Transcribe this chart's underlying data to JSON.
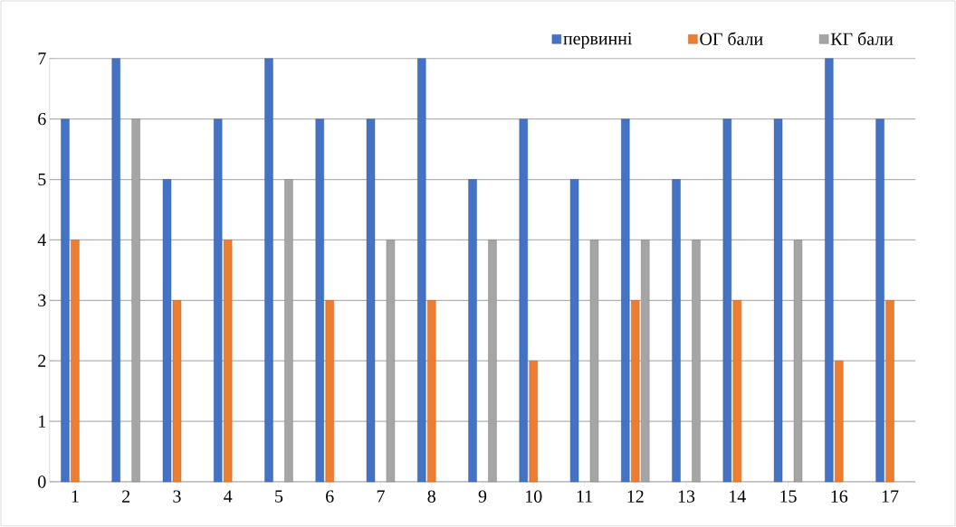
{
  "chart_data": {
    "type": "bar",
    "categories": [
      "1",
      "2",
      "3",
      "4",
      "5",
      "6",
      "7",
      "8",
      "9",
      "10",
      "11",
      "12",
      "13",
      "14",
      "15",
      "16",
      "17"
    ],
    "series": [
      {
        "name": "первинні",
        "color": "#4472c4",
        "values": [
          6,
          7,
          5,
          6,
          7,
          6,
          6,
          7,
          5,
          6,
          5,
          6,
          5,
          6,
          6,
          7,
          6
        ]
      },
      {
        "name": "ОГ бали",
        "color": "#ed7d31",
        "values": [
          4,
          null,
          3,
          4,
          null,
          3,
          null,
          3,
          null,
          2,
          null,
          3,
          null,
          3,
          null,
          2,
          3
        ]
      },
      {
        "name": "КГ бали",
        "color": "#a5a5a5",
        "values": [
          null,
          6,
          null,
          null,
          5,
          null,
          4,
          null,
          4,
          null,
          4,
          4,
          4,
          null,
          4,
          null,
          null
        ]
      }
    ],
    "ylim": [
      0,
      7
    ],
    "yticks": [
      0,
      1,
      2,
      3,
      4,
      5,
      6,
      7
    ],
    "grid": "y",
    "legend": "top right"
  }
}
